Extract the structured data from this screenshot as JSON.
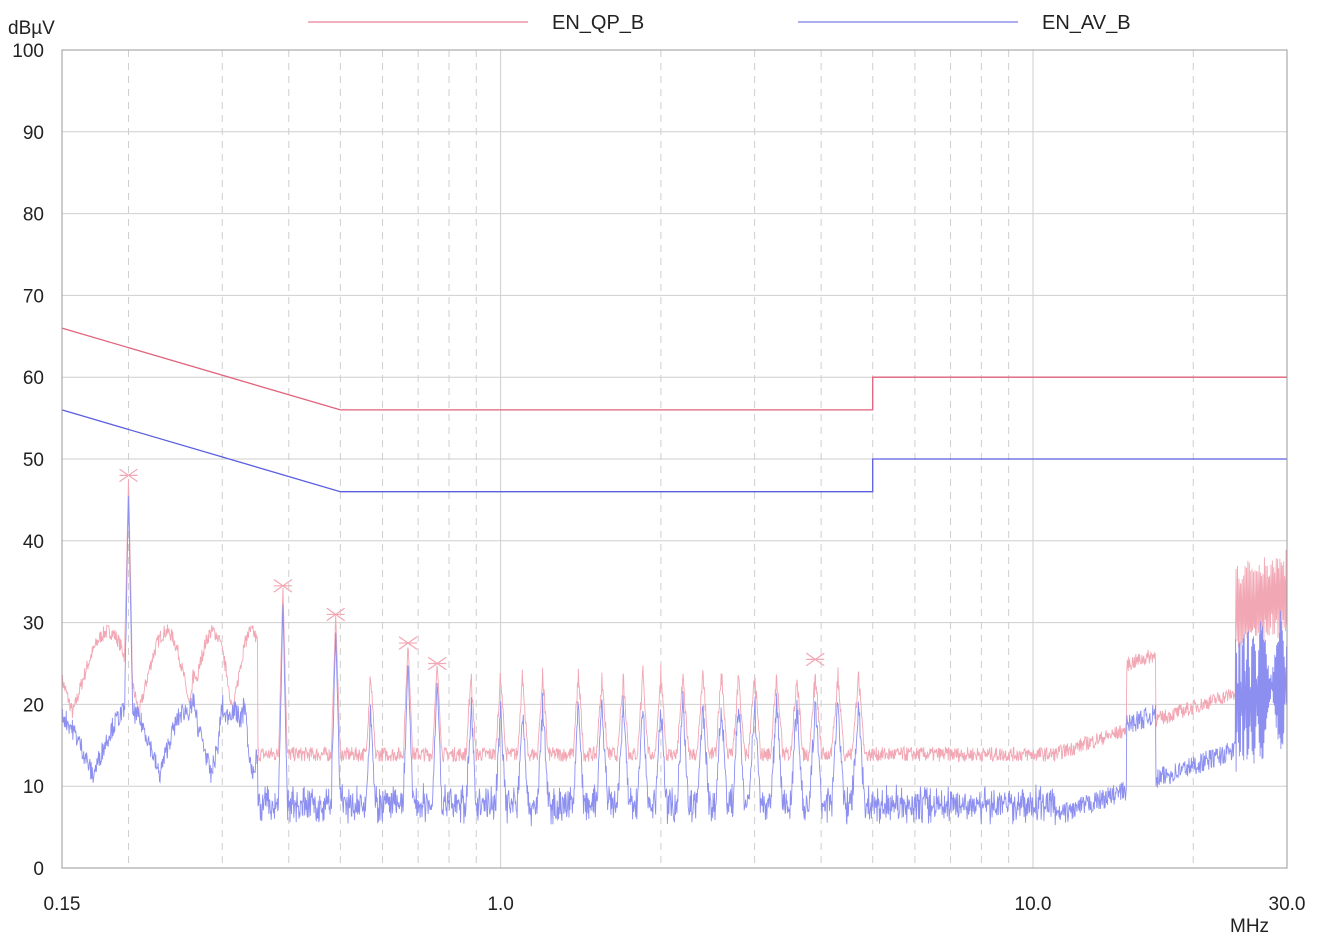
{
  "chart_data": {
    "type": "line",
    "title": "",
    "xlabel": "",
    "ylabel": "",
    "x_unit": "MHz",
    "y_unit": "dBµV",
    "x_scale": "log",
    "xlim": [
      0.15,
      30.0
    ],
    "ylim": [
      0,
      100
    ],
    "x_ticks": [
      "0.15",
      "1.0",
      "10.0",
      "30.0"
    ],
    "y_ticks": [
      "0",
      "10",
      "20",
      "30",
      "40",
      "50",
      "60",
      "70",
      "80",
      "90",
      "100"
    ],
    "grid": true,
    "legend_position": "top",
    "colors": {
      "qp": "#e0637a",
      "av": "#5a5ee0",
      "qp_meas": "#f2a7b4",
      "av_meas": "#8c8ff0",
      "grid": "#cfcfcf",
      "axis": "#9a9a9a"
    },
    "limit_lines": [
      {
        "name": "EN_QP_B",
        "color": "#e0637a",
        "points": [
          [
            0.15,
            66
          ],
          [
            0.5,
            56
          ],
          [
            5.0,
            56
          ],
          [
            5.0,
            60
          ],
          [
            30.0,
            60
          ]
        ]
      },
      {
        "name": "EN_AV_B",
        "color": "#5a5ee0",
        "points": [
          [
            0.15,
            56
          ],
          [
            0.5,
            46
          ],
          [
            5.0,
            46
          ],
          [
            5.0,
            50
          ],
          [
            30.0,
            50
          ]
        ]
      }
    ],
    "peaks": [
      {
        "x": 0.2,
        "y": 48
      },
      {
        "x": 0.39,
        "y": 34.5
      },
      {
        "x": 0.49,
        "y": 31
      },
      {
        "x": 0.67,
        "y": 27.5
      },
      {
        "x": 0.76,
        "y": 25
      },
      {
        "x": 3.9,
        "y": 25.5
      }
    ],
    "measurement_series": [
      {
        "color": "#f2a7b4",
        "kind": "qp"
      },
      {
        "color": "#8c8ff0",
        "kind": "av"
      }
    ]
  }
}
